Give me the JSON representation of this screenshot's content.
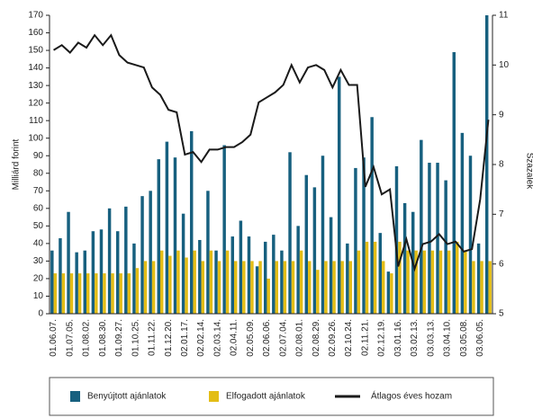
{
  "chart_data": {
    "type": "bar+line",
    "y_label": "Milliárd forint",
    "y2_label": "Százalék",
    "categories": [
      "01.06.07.",
      null,
      "01.07.05.",
      null,
      "01.08.02.",
      null,
      "01.08.30.",
      null,
      "01.09.27.",
      null,
      "01.10.25.",
      null,
      "01.11.22.",
      null,
      "01.12.20.",
      null,
      "02.01.17.",
      null,
      "02.02.14.",
      null,
      "02.03.14.",
      null,
      "02.04.11.",
      null,
      "02.05.09.",
      null,
      "02.06.06.",
      null,
      "02.07.04.",
      null,
      "02.08.01.",
      null,
      "02.08.29.",
      null,
      "02.09.26.",
      null,
      "02.10.24.",
      null,
      "02.11.21.",
      null,
      "02.12.19.",
      null,
      "03.01.16.",
      null,
      "03.02.13.",
      null,
      "03.03.13.",
      null,
      "03.04.10.",
      null,
      "03.05.08.",
      null,
      "03.06.05.",
      null
    ],
    "series": [
      {
        "name": "Benyújtott ajánlatok",
        "color": "#17607f",
        "kind": "bar",
        "values": [
          36,
          43,
          58,
          35,
          36,
          47,
          48,
          60,
          47,
          61,
          40,
          67,
          70,
          88,
          98,
          89,
          57,
          104,
          42,
          70,
          36,
          96,
          44,
          53,
          44,
          27,
          41,
          45,
          36,
          92,
          50,
          79,
          72,
          90,
          55,
          135,
          40,
          83,
          89,
          112,
          46,
          24,
          84,
          63,
          58,
          99,
          86,
          86,
          76,
          149,
          103,
          90,
          40,
          170
        ]
      },
      {
        "name": "Elfogadott ajánlatok",
        "color": "#e3bd16",
        "kind": "bar",
        "values": [
          23,
          23,
          23,
          23,
          23,
          23,
          23,
          23,
          23,
          23,
          26,
          30,
          30,
          36,
          33,
          36,
          32,
          36,
          30,
          36,
          30,
          36,
          30,
          30,
          30,
          30,
          20,
          30,
          30,
          30,
          36,
          30,
          25,
          30,
          30,
          30,
          30,
          36,
          41,
          41,
          30,
          23,
          41,
          36,
          36,
          36,
          36,
          36,
          36,
          41,
          36,
          30,
          30,
          30
        ]
      },
      {
        "name": "Átlagos éves hozam",
        "color": "#1a1a1a",
        "kind": "line",
        "axis": "y2",
        "values": [
          10.3,
          10.4,
          10.25,
          10.45,
          10.35,
          10.6,
          10.4,
          10.6,
          10.2,
          10.05,
          10.0,
          9.95,
          9.55,
          9.4,
          9.1,
          9.05,
          8.2,
          8.25,
          8.05,
          8.3,
          8.3,
          8.35,
          8.35,
          8.45,
          8.6,
          9.25,
          9.35,
          9.45,
          9.6,
          10.0,
          9.65,
          9.95,
          10.0,
          9.9,
          9.55,
          9.9,
          9.6,
          9.6,
          7.55,
          7.95,
          7.4,
          7.5,
          5.95,
          6.5,
          5.9,
          6.4,
          6.45,
          6.6,
          6.4,
          6.45,
          6.25,
          6.3,
          7.3,
          8.9
        ]
      }
    ],
    "ylim": [
      0,
      170
    ],
    "yticks": [
      0,
      10,
      20,
      30,
      40,
      50,
      60,
      70,
      80,
      90,
      100,
      110,
      120,
      130,
      140,
      150,
      160,
      170
    ],
    "y2lim": [
      5,
      11
    ],
    "y2ticks": [
      5,
      6,
      7,
      8,
      9,
      10,
      11
    ],
    "grid": false,
    "legend": "bottom"
  }
}
